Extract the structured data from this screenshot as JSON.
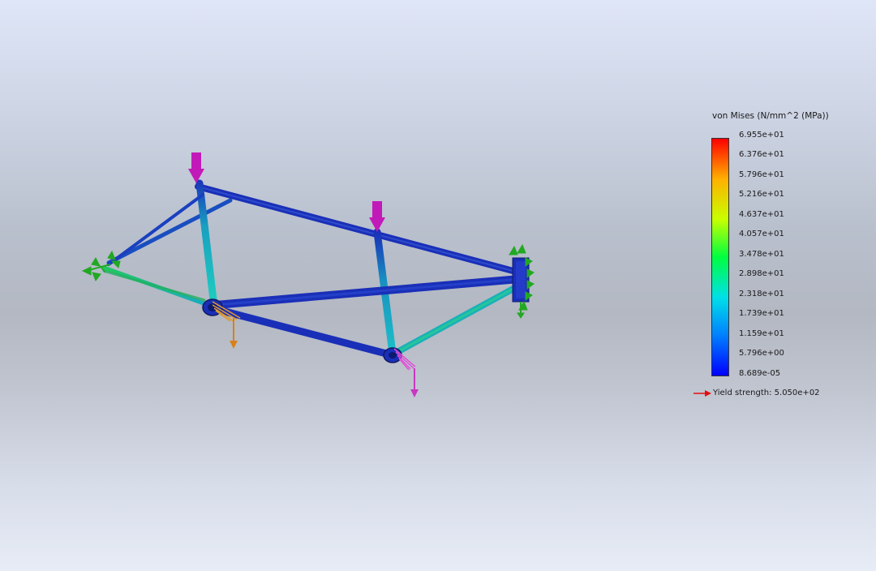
{
  "legend": {
    "title": "von Mises (N/mm^2 (MPa))",
    "ticks": [
      "6.955e+01",
      "6.376e+01",
      "5.796e+01",
      "5.216e+01",
      "4.637e+01",
      "4.057e+01",
      "3.478e+01",
      "2.898e+01",
      "2.318e+01",
      "1.739e+01",
      "1.159e+01",
      "5.796e+00",
      "8.689e-05"
    ],
    "yield_label": "Yield strength: 5.050e+02",
    "yield_arrow_color": "#e01010"
  },
  "colors": {
    "frame_blue": "#1a2fb8",
    "frame_cyan": "#1cb4c0",
    "frame_green": "#2bbf6a",
    "load_arrow": "#c21ab8",
    "fixture_green": "#22a822",
    "bearing_load_orange": "#d9801a",
    "bearing_load_magenta": "#d838d0"
  }
}
